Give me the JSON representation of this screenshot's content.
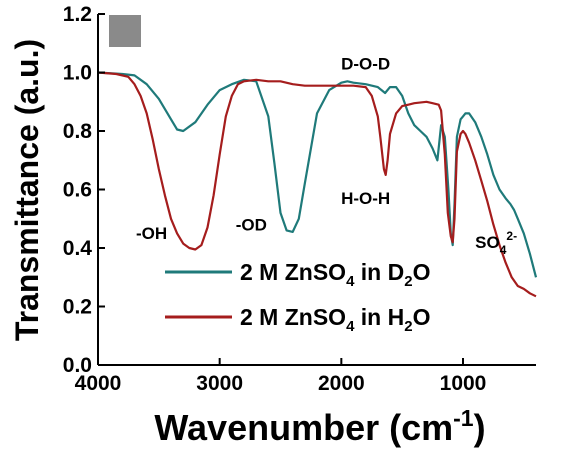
{
  "chart_data": {
    "type": "line",
    "xlabel_main": "Wavenumber (cm",
    "xlabel_sup": "-1",
    "xlabel_end": ")",
    "ylabel": "Transmittance (a.u.)",
    "xlim": [
      4000,
      400
    ],
    "ylim": [
      0.0,
      1.2
    ],
    "x_ticks": [
      "4000",
      "3000",
      "2000",
      "1000"
    ],
    "x_tick_values": [
      4000,
      3000,
      2000,
      1000
    ],
    "y_ticks": [
      "0.0",
      "0.2",
      "0.4",
      "0.6",
      "0.8",
      "1.0",
      "1.2"
    ],
    "y_tick_values": [
      0.0,
      0.2,
      0.4,
      0.6,
      0.8,
      1.0,
      1.2
    ],
    "grid": false,
    "legend_placement": "bottom-right",
    "colors": {
      "d2o": "#1f7a7a",
      "h2o": "#a51d1d",
      "axis": "#000000",
      "swatch": "#8a8a8a"
    },
    "series": [
      {
        "key": "d2o",
        "legend_main": "2 M ZnSO",
        "legend_sub": "4",
        "legend_mid": " in D",
        "legend_sub2": "2",
        "legend_end": "O",
        "x": [
          4000,
          3800,
          3700,
          3600,
          3500,
          3400,
          3350,
          3300,
          3200,
          3100,
          3000,
          2900,
          2800,
          2700,
          2600,
          2550,
          2500,
          2450,
          2400,
          2350,
          2300,
          2200,
          2100,
          2000,
          1950,
          1900,
          1800,
          1700,
          1640,
          1600,
          1550,
          1500,
          1450,
          1400,
          1350,
          1300,
          1250,
          1210,
          1180,
          1150,
          1120,
          1100,
          1085,
          1070,
          1050,
          1020,
          1000,
          980,
          950,
          900,
          850,
          800,
          750,
          700,
          650,
          610,
          580,
          550,
          500,
          450,
          400
        ],
        "y": [
          1.0,
          0.995,
          0.99,
          0.96,
          0.91,
          0.84,
          0.805,
          0.8,
          0.83,
          0.89,
          0.94,
          0.96,
          0.975,
          0.97,
          0.85,
          0.69,
          0.52,
          0.46,
          0.455,
          0.5,
          0.62,
          0.86,
          0.94,
          0.965,
          0.97,
          0.965,
          0.96,
          0.95,
          0.93,
          0.95,
          0.95,
          0.92,
          0.86,
          0.82,
          0.8,
          0.78,
          0.74,
          0.7,
          0.82,
          0.78,
          0.6,
          0.45,
          0.41,
          0.55,
          0.78,
          0.84,
          0.85,
          0.86,
          0.86,
          0.83,
          0.78,
          0.72,
          0.65,
          0.6,
          0.57,
          0.55,
          0.53,
          0.5,
          0.45,
          0.38,
          0.3
        ]
      },
      {
        "key": "h2o",
        "legend_main": "2 M ZnSO",
        "legend_sub": "4",
        "legend_mid": " in H",
        "legend_sub2": "2",
        "legend_end": "O",
        "x": [
          4000,
          3850,
          3750,
          3700,
          3650,
          3600,
          3550,
          3500,
          3450,
          3400,
          3350,
          3300,
          3250,
          3200,
          3150,
          3100,
          3050,
          3000,
          2950,
          2900,
          2850,
          2800,
          2700,
          2600,
          2500,
          2400,
          2300,
          2200,
          2100,
          2000,
          1900,
          1800,
          1750,
          1700,
          1680,
          1650,
          1635,
          1620,
          1600,
          1550,
          1500,
          1450,
          1400,
          1300,
          1250,
          1200,
          1180,
          1150,
          1125,
          1100,
          1085,
          1070,
          1050,
          1020,
          1000,
          980,
          950,
          900,
          850,
          800,
          750,
          700,
          650,
          600,
          550,
          500,
          450,
          400
        ],
        "y": [
          1.0,
          0.995,
          0.985,
          0.96,
          0.92,
          0.86,
          0.77,
          0.67,
          0.58,
          0.5,
          0.45,
          0.415,
          0.4,
          0.395,
          0.41,
          0.47,
          0.58,
          0.72,
          0.85,
          0.92,
          0.96,
          0.97,
          0.975,
          0.97,
          0.97,
          0.96,
          0.955,
          0.955,
          0.955,
          0.955,
          0.955,
          0.95,
          0.92,
          0.85,
          0.78,
          0.67,
          0.65,
          0.7,
          0.79,
          0.86,
          0.885,
          0.89,
          0.895,
          0.9,
          0.895,
          0.89,
          0.87,
          0.72,
          0.52,
          0.44,
          0.42,
          0.5,
          0.73,
          0.79,
          0.8,
          0.79,
          0.76,
          0.7,
          0.63,
          0.56,
          0.48,
          0.41,
          0.35,
          0.3,
          0.27,
          0.26,
          0.245,
          0.235
        ]
      }
    ],
    "annotations": [
      {
        "text": "D-O-D",
        "x": 1800,
        "y": 1.01
      },
      {
        "text": "H-O-H",
        "x": 1800,
        "y": 0.55
      },
      {
        "text": "-OH",
        "x": 3560,
        "y": 0.43
      },
      {
        "text": "-OD",
        "x": 2740,
        "y": 0.46
      }
    ],
    "annotation_so4": {
      "main": "SO",
      "sub": "4",
      "sup": "2-",
      "x": 900,
      "y": 0.4
    }
  }
}
